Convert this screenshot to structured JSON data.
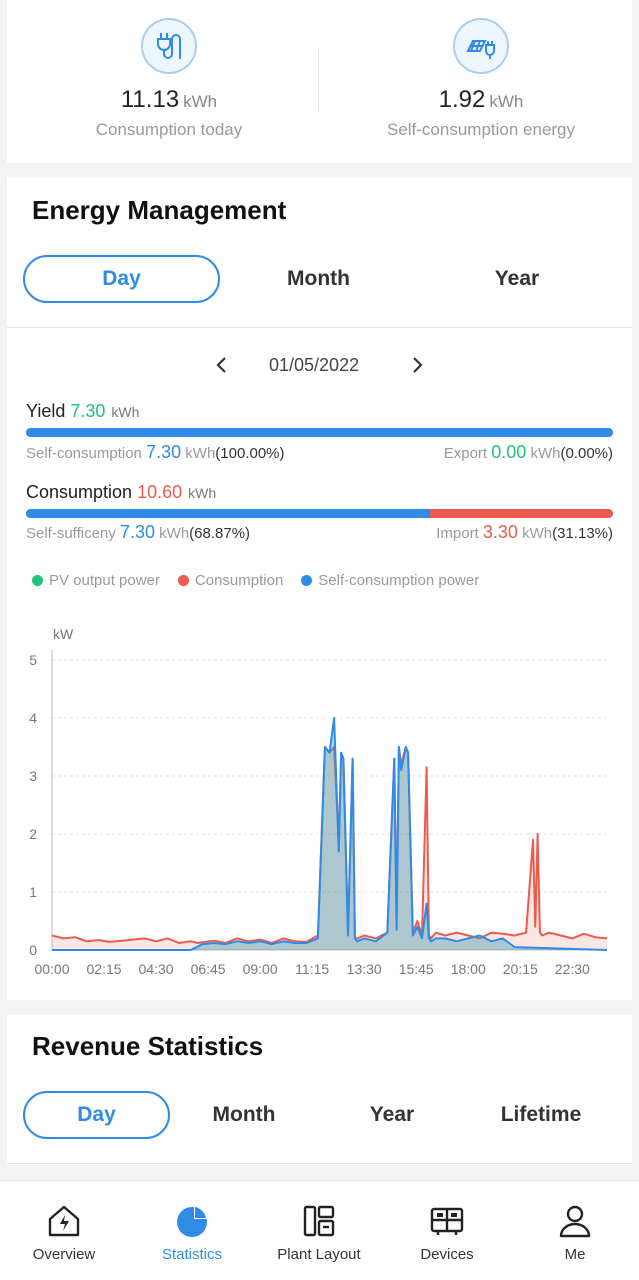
{
  "summary": {
    "consumption_today": {
      "value": "11.13",
      "unit": "kWh",
      "label": "Consumption today",
      "icon": "plug-icon"
    },
    "self_consumption": {
      "value": "1.92",
      "unit": "kWh",
      "label": "Self-consumption energy",
      "icon": "solar-panel-icon"
    }
  },
  "energy": {
    "title": "Energy Management",
    "tabs": [
      "Day",
      "Month",
      "Year"
    ],
    "active_tab": "Day",
    "date": "01/05/2022",
    "yield": {
      "label": "Yield",
      "value": "7.30",
      "unit": "kWh",
      "self_label": "Self-consumption",
      "self_value": "7.30",
      "self_unit": "kWh",
      "self_pct": "(100.00%)",
      "export_label": "Export",
      "export_value": "0.00",
      "export_unit": "kWh",
      "export_pct": "(0.00%)",
      "self_fraction": 1.0
    },
    "consumption": {
      "label": "Consumption",
      "value": "10.60",
      "unit": "kWh",
      "self_label": "Self-sufficeny",
      "self_value": "7.30",
      "self_unit": "kWh",
      "self_pct": "(68.87%)",
      "import_label": "Import",
      "import_value": "3.30",
      "import_unit": "kWh",
      "import_pct": "(31.13%)",
      "self_fraction": 0.6887
    },
    "legend": [
      {
        "name": "PV output power",
        "color": "#1fc37a"
      },
      {
        "name": "Consumption",
        "color": "#ec5b4e"
      },
      {
        "name": "Self-consumption power",
        "color": "#2f8be6"
      }
    ]
  },
  "chart_data": {
    "type": "line",
    "ylabel": "kW",
    "ylim": [
      0,
      5
    ],
    "yticks": [
      0,
      1,
      2,
      3,
      4,
      5
    ],
    "xticks": [
      "00:00",
      "02:15",
      "04:30",
      "06:45",
      "09:00",
      "11:15",
      "13:30",
      "15:45",
      "18:00",
      "20:15",
      "22:30"
    ],
    "xlim_hours": [
      0,
      24
    ],
    "grid": true,
    "series": [
      {
        "name": "Consumption",
        "color": "#ec5b4e",
        "x": [
          0,
          0.5,
          1,
          1.5,
          2,
          2.5,
          3,
          3.5,
          4,
          4.5,
          5,
          5.5,
          6,
          6.3,
          6.6,
          7,
          7.5,
          8,
          8.5,
          9,
          9.5,
          10,
          10.5,
          11,
          11.5,
          11.8,
          12.0,
          12.2,
          12.4,
          12.5,
          12.6,
          12.8,
          13.0,
          13.1,
          13.2,
          13.5,
          14.0,
          14.5,
          14.8,
          14.9,
          15.0,
          15.1,
          15.3,
          15.4,
          15.6,
          15.8,
          16.0,
          16.2,
          16.3,
          16.4,
          16.6,
          17.0,
          17.5,
          18.0,
          18.5,
          19.0,
          19.5,
          20.0,
          20.5,
          20.8,
          20.9,
          21.0,
          21.1,
          21.2,
          21.5,
          22.0,
          22.5,
          23.0,
          23.5,
          24.0
        ],
        "y": [
          0.25,
          0.2,
          0.22,
          0.15,
          0.17,
          0.14,
          0.16,
          0.18,
          0.2,
          0.15,
          0.2,
          0.12,
          0.15,
          0.12,
          0.14,
          0.16,
          0.12,
          0.2,
          0.15,
          0.18,
          0.12,
          0.2,
          0.15,
          0.14,
          0.25,
          3.5,
          3.4,
          3.5,
          1.8,
          3.4,
          3.3,
          0.3,
          3.3,
          0.2,
          0.2,
          0.25,
          0.2,
          0.3,
          3.3,
          0.4,
          3.5,
          3.2,
          3.5,
          3.4,
          0.3,
          0.5,
          0.25,
          3.15,
          0.25,
          0.2,
          0.3,
          0.25,
          0.3,
          0.25,
          0.2,
          0.3,
          0.28,
          0.25,
          0.3,
          1.9,
          0.4,
          2.0,
          0.3,
          0.25,
          0.3,
          0.25,
          0.2,
          0.28,
          0.22,
          0.2
        ]
      },
      {
        "name": "Self-consumption power",
        "color": "#2f8be6",
        "x": [
          0,
          6.0,
          6.5,
          7,
          7.5,
          8,
          8.5,
          9,
          9.5,
          10,
          10.5,
          11,
          11.5,
          11.8,
          12.0,
          12.2,
          12.4,
          12.5,
          12.6,
          12.8,
          13.0,
          13.1,
          13.2,
          13.5,
          14.0,
          14.5,
          14.8,
          14.9,
          15.0,
          15.1,
          15.3,
          15.4,
          15.6,
          15.8,
          16.0,
          16.2,
          16.3,
          16.4,
          16.6,
          17.0,
          17.5,
          18.0,
          18.5,
          19.0,
          19.5,
          20.0,
          24.0
        ],
        "y": [
          0,
          0,
          0.1,
          0.12,
          0.1,
          0.15,
          0.12,
          0.15,
          0.1,
          0.15,
          0.12,
          0.12,
          0.2,
          3.5,
          3.4,
          4.0,
          1.7,
          3.4,
          3.3,
          0.25,
          3.3,
          0.2,
          0.15,
          0.2,
          0.15,
          0.3,
          3.3,
          0.35,
          3.5,
          3.1,
          3.5,
          3.4,
          0.25,
          0.4,
          0.2,
          0.8,
          0.2,
          0.15,
          0.2,
          0.2,
          0.15,
          0.2,
          0.25,
          0.15,
          0.2,
          0.05,
          0
        ]
      }
    ]
  },
  "revenue": {
    "title": "Revenue Statistics",
    "tabs": [
      "Day",
      "Month",
      "Year",
      "Lifetime"
    ],
    "active_tab": "Day"
  },
  "bottom_nav": [
    {
      "label": "Overview",
      "icon": "overview-icon",
      "active": false
    },
    {
      "label": "Statistics",
      "icon": "statistics-icon",
      "active": true
    },
    {
      "label": "Plant Layout",
      "icon": "plant-layout-icon",
      "active": false
    },
    {
      "label": "Devices",
      "icon": "devices-icon",
      "active": false
    },
    {
      "label": "Me",
      "icon": "me-icon",
      "active": false
    }
  ]
}
